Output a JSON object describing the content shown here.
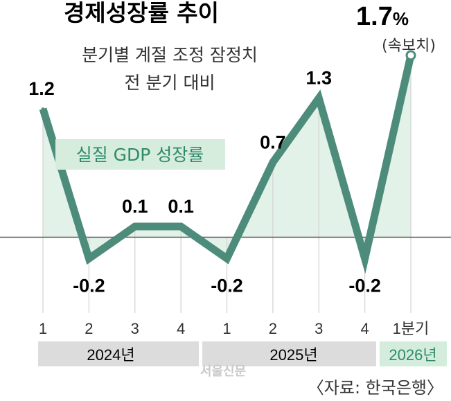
{
  "title": "경제성장률 추이",
  "subtitle_line1": "분기별 계절 조정 잠정치",
  "subtitle_line2": "전 분기 대비",
  "legend_label": "실질 GDP 성장률",
  "latest": {
    "value": "1.7",
    "unit": "%",
    "note": "(속보치)"
  },
  "year_groups": [
    {
      "label": "2024년",
      "active": false
    },
    {
      "label": "2025년",
      "active": false
    },
    {
      "label": "2026년",
      "active": true
    }
  ],
  "watermark": "서울신문",
  "source": "〈자료: 한국은행〉",
  "colors": {
    "line": "#4d8c7a",
    "fill": "#e3f2e8",
    "legend_bg": "#d6ecdd",
    "legend_text": "#2f8a6a",
    "year_bg": "#dcdcdc",
    "year_active_bg": "#d3ecdc",
    "year_active_text": "#2e8a68"
  },
  "chart_data": {
    "type": "line",
    "categories": [
      "1",
      "2",
      "3",
      "4",
      "1",
      "2",
      "3",
      "4",
      "1분기"
    ],
    "series": [
      {
        "name": "실질 GDP 성장률",
        "values": [
          1.2,
          -0.2,
          0.1,
          0.1,
          -0.2,
          0.7,
          1.3,
          -0.2,
          1.7
        ],
        "labels": [
          "1.2",
          "-0.2",
          "0.1",
          "0.1",
          "-0.2",
          "0.7",
          "1.3",
          "-0.2",
          ""
        ]
      }
    ],
    "ylim": [
      -0.8,
      1.9
    ],
    "grid": false
  }
}
